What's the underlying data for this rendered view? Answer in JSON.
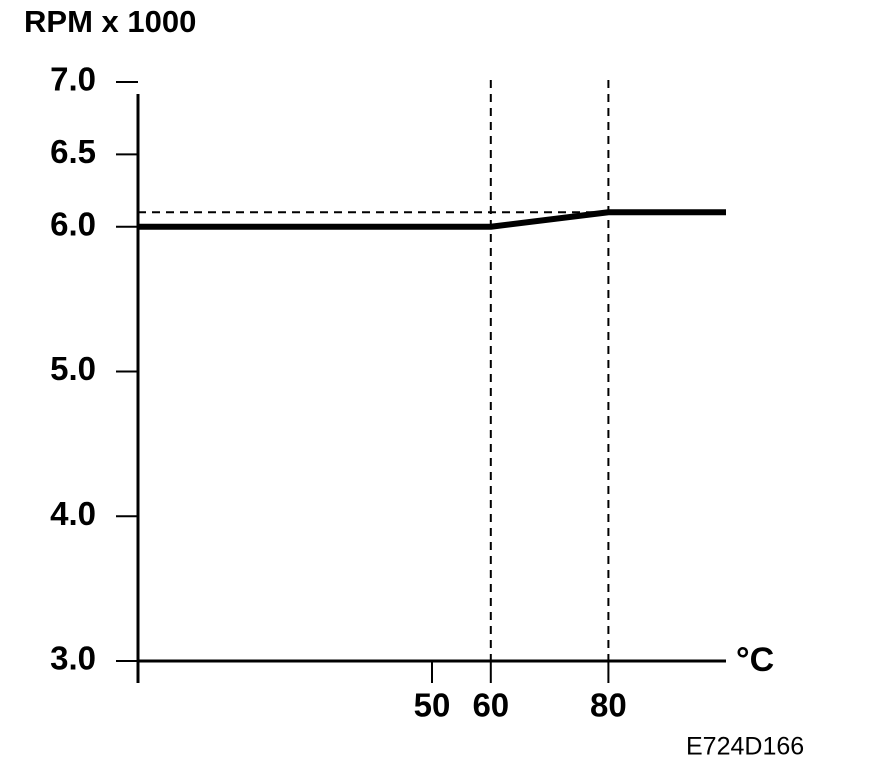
{
  "chart_data": {
    "type": "line",
    "title": "RPM x 1000",
    "x_unit": "°C",
    "code": "E724D166",
    "x": [
      0,
      60,
      80,
      100
    ],
    "series": [
      {
        "color": "#000000",
        "values": [
          6.0,
          6.0,
          6.1,
          6.1
        ]
      }
    ],
    "xlim": [
      0,
      100
    ],
    "xticks": [
      50,
      60,
      80
    ],
    "ylim": [
      3,
      7
    ],
    "yticks": [
      {
        "value": 3,
        "label": "3.0"
      },
      {
        "value": 4,
        "label": "4.0"
      },
      {
        "value": 5,
        "label": "5.0"
      },
      {
        "value": 6,
        "label": "6.0"
      },
      {
        "value": 6.5,
        "label": "6.5"
      },
      {
        "value": 7,
        "label": "7.0"
      }
    ],
    "reference_x": [
      60,
      80
    ],
    "reference_y": 6.1
  }
}
